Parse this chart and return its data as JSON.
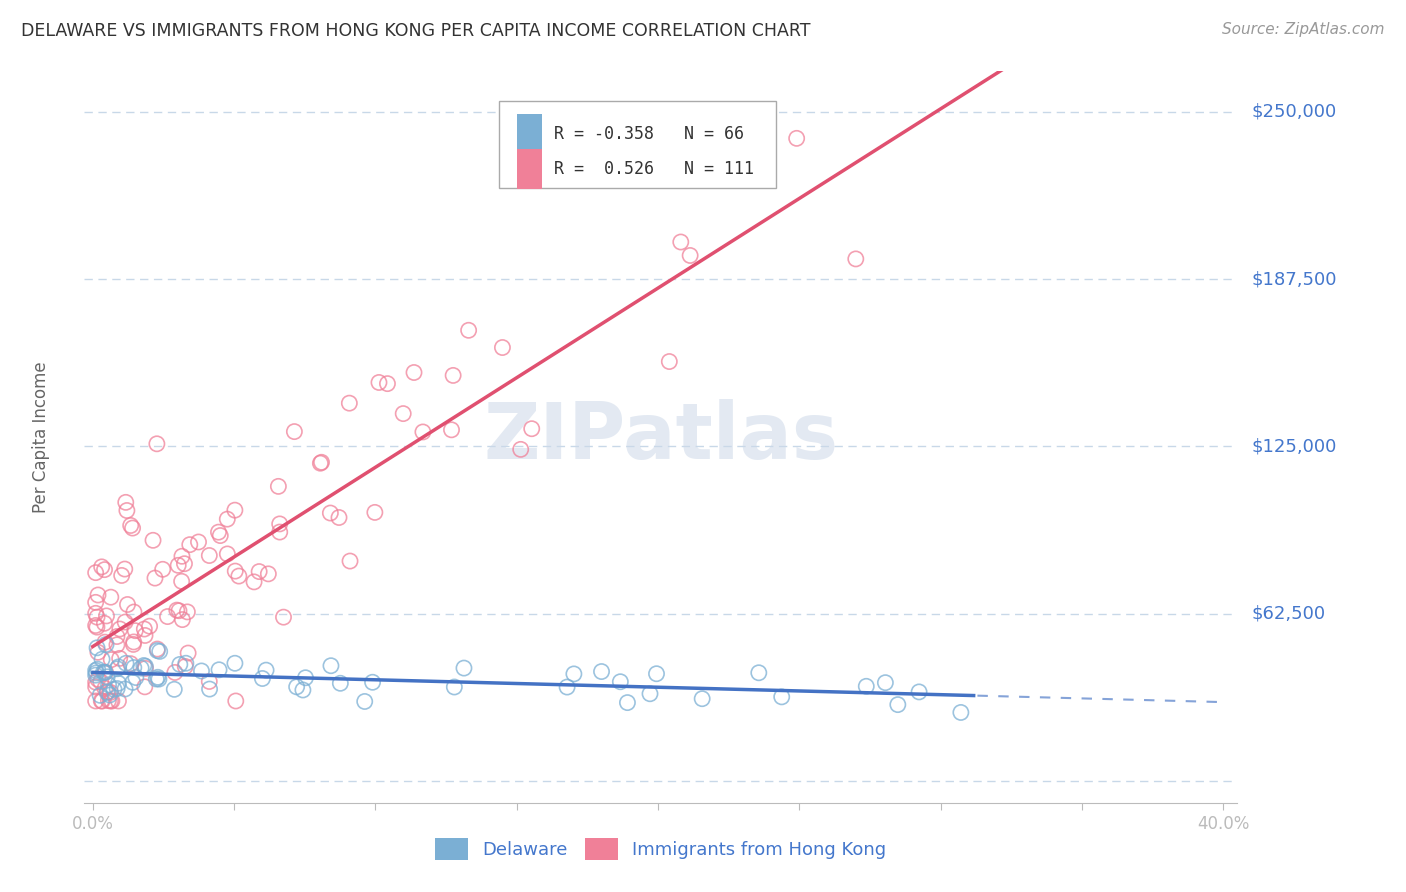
{
  "title": "DELAWARE VS IMMIGRANTS FROM HONG KONG PER CAPITA INCOME CORRELATION CHART",
  "source": "Source: ZipAtlas.com",
  "ylabel": "Per Capita Income",
  "xlim": [
    -0.003,
    0.405
  ],
  "ylim": [
    -8000,
    265000
  ],
  "yticks": [
    0,
    62500,
    125000,
    187500,
    250000
  ],
  "ytick_labels": [
    "",
    "$62,500",
    "$125,000",
    "$187,500",
    "$250,000"
  ],
  "xticks": [
    0.0,
    0.05,
    0.1,
    0.15,
    0.2,
    0.25,
    0.3,
    0.35,
    0.4
  ],
  "background_color": "#ffffff",
  "grid_color": "#c8d8e8",
  "delaware_color": "#7bafd4",
  "hk_color": "#f08098",
  "delaware_line_color": "#4472c4",
  "hk_line_color": "#e05070",
  "delaware_R": -0.358,
  "delaware_N": 66,
  "hk_R": 0.526,
  "hk_N": 111,
  "title_color": "#333333",
  "tick_label_color": "#4477cc",
  "watermark_color": "#ccd8e8",
  "legend_label_delaware": "Delaware",
  "legend_label_hk": "Immigrants from Hong Kong"
}
